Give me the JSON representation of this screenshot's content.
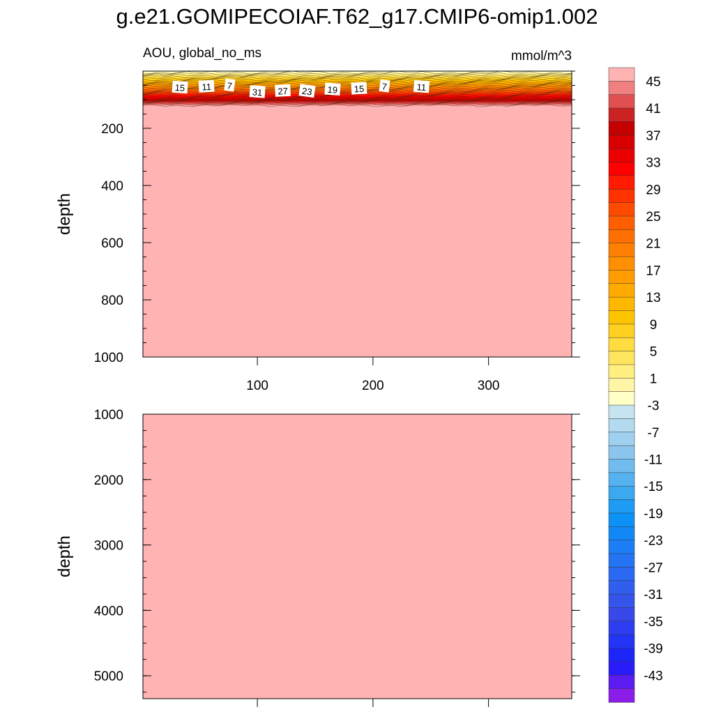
{
  "title": "g.e21.GOMIPECOIAF.T62_g17.CMIP6-omip1.002",
  "chart_data": {
    "type": "heatmap",
    "variable": "AOU, global_no_ms",
    "units": "mmol/m^3",
    "panels": [
      {
        "ylabel": "depth",
        "ylim": [
          1000,
          0
        ],
        "yticks": [
          "200",
          "400",
          "600",
          "800",
          "1000"
        ],
        "xlim": [
          1,
          372
        ],
        "xticks": [
          "100",
          "200",
          "300"
        ],
        "description_values": "Thin shallow layer: about -1 to 7 near surface rising to ~45 by ~120 m; uniform >45 below",
        "contour_labels": [
          {
            "text": "15",
            "x": 33,
            "y": 57
          },
          {
            "text": "11",
            "x": 56,
            "y": 54
          },
          {
            "text": "7",
            "x": 76,
            "y": 50
          },
          {
            "text": "31",
            "x": 100,
            "y": 73
          },
          {
            "text": "27",
            "x": 122,
            "y": 69
          },
          {
            "text": "23",
            "x": 143,
            "y": 70
          },
          {
            "text": "19",
            "x": 165,
            "y": 64
          },
          {
            "text": "15",
            "x": 188,
            "y": 61
          },
          {
            "text": "7",
            "x": 210,
            "y": 53
          },
          {
            "text": "11",
            "x": 242,
            "y": 55
          }
        ],
        "surface_top": 0,
        "surface_bottom": 125
      },
      {
        "ylabel": "depth",
        "ylim": [
          5350,
          1000
        ],
        "yticks": [
          "1000",
          "2000",
          "3000",
          "4000",
          "5000"
        ],
        "xlim": [
          1,
          372
        ],
        "xticks": [
          "100",
          "200",
          "300"
        ],
        "description_values": "Uniform >45 everywhere"
      }
    ],
    "colorbar": {
      "labels": [
        "45",
        "41",
        "37",
        "33",
        "29",
        "25",
        "21",
        "17",
        "13",
        "9",
        "5",
        "1",
        "-3",
        "-7",
        "-11",
        "-15",
        "-19",
        "-23",
        "-27",
        "-31",
        "-35",
        "-39",
        "-43"
      ],
      "levels_top_to_bottom": [
        ">45",
        "45",
        "43",
        "41",
        "39",
        "37",
        "35",
        "33",
        "31",
        "29",
        "27",
        "25",
        "23",
        "21",
        "19",
        "17",
        "15",
        "13",
        "11",
        "9",
        "7",
        "5",
        "3",
        "1",
        "-1",
        "-3",
        "-5",
        "-7",
        "-9",
        "-11",
        "-13",
        "-15",
        "-17",
        "-19",
        "-21",
        "-23",
        "-25",
        "-27",
        "-29",
        "-31",
        "-33",
        "-35",
        "-37",
        "-39",
        "-41",
        "-43",
        "<-45"
      ],
      "colors_top_to_bottom": [
        "#ffb3b3",
        "#f08080",
        "#e05050",
        "#cc2222",
        "#c40000",
        "#d80000",
        "#ea0000",
        "#ff0000",
        "#ff1a00",
        "#ff3300",
        "#ff4b00",
        "#ff5f00",
        "#ff7000",
        "#ff8000",
        "#ff8f00",
        "#ff9d00",
        "#ffaa00",
        "#ffb800",
        "#ffc400",
        "#ffd020",
        "#ffdc40",
        "#ffe55e",
        "#ffee80",
        "#fff5a6",
        "#ffffc8",
        "#c6e3f0",
        "#b4daf0",
        "#a0d0ef",
        "#8cc6ee",
        "#70bcee",
        "#55b2ef",
        "#3ca8f0",
        "#1e9cf5",
        "#0c92f7",
        "#1288f7",
        "#1c7ef6",
        "#2474f4",
        "#2a6af2",
        "#305fee",
        "#3454ea",
        "#3848ea",
        "#2c3ef0",
        "#2234f5",
        "#1c26f8",
        "#2a1cf8",
        "#5a1cf0",
        "#8a1ee8"
      ]
    }
  }
}
